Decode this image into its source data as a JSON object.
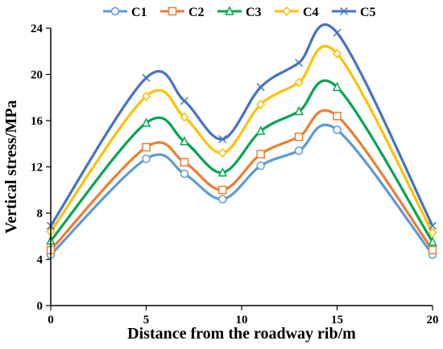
{
  "chart_data": {
    "type": "line",
    "xlabel": "Distance from the roadway rib/m",
    "ylabel": "Vertical stress/MPa",
    "xlim": [
      0,
      20
    ],
    "ylim": [
      0,
      24
    ],
    "xticks": [
      0,
      5,
      10,
      15,
      20
    ],
    "yticks": [
      0,
      4,
      8,
      12,
      16,
      20,
      24
    ],
    "x": [
      0,
      5,
      7,
      9,
      11,
      13,
      15,
      20
    ],
    "legend_position": "top",
    "grid": false,
    "series": [
      {
        "name": "C1",
        "color": "#5B9BD5",
        "marker": "circle",
        "values": [
          4.4,
          12.7,
          11.4,
          9.2,
          12.1,
          13.4,
          15.2,
          4.4
        ]
      },
      {
        "name": "C2",
        "color": "#ED7D31",
        "marker": "square",
        "values": [
          4.8,
          13.7,
          12.4,
          10.0,
          13.1,
          14.6,
          16.4,
          4.8
        ]
      },
      {
        "name": "C3",
        "color": "#00A550",
        "marker": "triangle",
        "values": [
          5.6,
          15.8,
          14.2,
          11.5,
          15.1,
          16.8,
          18.9,
          5.5
        ]
      },
      {
        "name": "C4",
        "color": "#FFC000",
        "marker": "diamond",
        "values": [
          6.4,
          18.1,
          16.3,
          13.2,
          17.4,
          19.3,
          21.8,
          6.3
        ]
      },
      {
        "name": "C5",
        "color": "#4472C4",
        "marker": "cross",
        "values": [
          6.9,
          19.7,
          17.7,
          14.4,
          18.9,
          21.0,
          23.6,
          6.9
        ]
      }
    ]
  }
}
